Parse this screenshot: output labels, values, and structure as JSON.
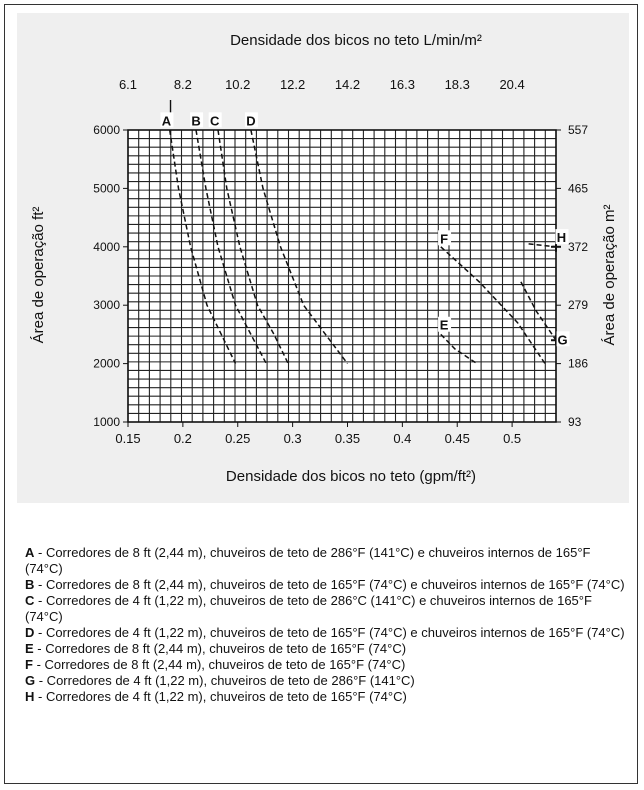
{
  "chart_data": {
    "type": "line",
    "top_axis_label": "Densidade dos bicos no teto L/min/m²",
    "top_ticks": [
      "6.1",
      "8.2",
      "10.2",
      "12.2",
      "14.2",
      "16.3",
      "18.3",
      "20.4"
    ],
    "xlabel": "Densidade dos bicos no teto (gpm/ft²)",
    "xticks": [
      "0.15",
      "0.2",
      "0.25",
      "0.3",
      "0.35",
      "0.4",
      "0.45",
      "0.5"
    ],
    "xlim": [
      0.15,
      0.54
    ],
    "ylabel": "Área de operação ft²",
    "yticks": [
      "1000",
      "2000",
      "3000",
      "4000",
      "5000",
      "6000"
    ],
    "ylim": [
      1000,
      6000
    ],
    "right_axis_label": "Área de operação m²",
    "right_ticks": [
      "93",
      "186",
      "279",
      "372",
      "465",
      "557"
    ],
    "grid": true,
    "series": [
      {
        "name": "A",
        "x": [
          0.188,
          0.196,
          0.207,
          0.222,
          0.235,
          0.248
        ],
        "y": [
          6000,
          5000,
          4000,
          3000,
          2500,
          2000
        ]
      },
      {
        "name": "B",
        "x": [
          0.212,
          0.221,
          0.232,
          0.248,
          0.262,
          0.276
        ],
        "y": [
          6000,
          5000,
          4000,
          3000,
          2500,
          2000
        ]
      },
      {
        "name": "C",
        "x": [
          0.232,
          0.24,
          0.252,
          0.268,
          0.283,
          0.296
        ],
        "y": [
          6000,
          5000,
          4000,
          3000,
          2500,
          2000
        ]
      },
      {
        "name": "D",
        "x": [
          0.262,
          0.273,
          0.289,
          0.31,
          0.33,
          0.35
        ],
        "y": [
          6000,
          5000,
          4000,
          3000,
          2500,
          2000
        ]
      },
      {
        "name": "E",
        "x": [
          0.435,
          0.448,
          0.468
        ],
        "y": [
          2500,
          2250,
          2000
        ]
      },
      {
        "name": "F",
        "x": [
          0.435,
          0.47,
          0.505,
          0.53
        ],
        "y": [
          4000,
          3400,
          2700,
          2000
        ]
      },
      {
        "name": "G",
        "x": [
          0.508,
          0.522,
          0.54
        ],
        "y": [
          3400,
          2900,
          2400
        ]
      },
      {
        "name": "H",
        "x": [
          0.515,
          0.54
        ],
        "y": [
          4050,
          4000
        ]
      }
    ],
    "point_labels": [
      {
        "text": "A",
        "x": 0.185,
        "y": 6080
      },
      {
        "text": "B",
        "x": 0.212,
        "y": 6080
      },
      {
        "text": "C",
        "x": 0.229,
        "y": 6080
      },
      {
        "text": "D",
        "x": 0.262,
        "y": 6080
      },
      {
        "text": "E",
        "x": 0.438,
        "y": 2580
      },
      {
        "text": "F",
        "x": 0.438,
        "y": 4060
      },
      {
        "text": "G",
        "x": 0.546,
        "y": 2330
      },
      {
        "text": "H",
        "x": 0.545,
        "y": 4080
      }
    ]
  },
  "legend": [
    {
      "key": "A",
      "text": " - Corredores de 8 ft (2,44 m), chuveiros de teto de 286°F (141°C) e chuveiros internos de 165°F (74°C)"
    },
    {
      "key": "B",
      "text": " - Corredores de 8 ft (2,44 m), chuveiros de teto de 165°F (74°C) e chuveiros internos de 165°F (74°C)"
    },
    {
      "key": "C",
      "text": " - Corredores de 4 ft (1,22 m), chuveiros de teto de 286°C (141°C) e chuveiros internos de 165°F (74°C)"
    },
    {
      "key": "D",
      "text": " - Corredores de 4 ft (1,22 m), chuveiros de teto de 165°F (74°C) e chuveiros internos de 165°F (74°C)"
    },
    {
      "key": "E",
      "text": " - Corredores de 8 ft (2,44 m), chuveiros de teto de 165°F (74°C)"
    },
    {
      "key": "F",
      "text": " - Corredores de 8 ft (2,44 m), chuveiros de teto de 165°F (74°C)"
    },
    {
      "key": "G",
      "text": " - Corredores de 4 ft (1,22 m), chuveiros de teto de 286°F (141°C)"
    },
    {
      "key": "H",
      "text": " - Corredores de 4 ft (1,22 m), chuveiros de teto de 165°F (74°C)"
    }
  ]
}
